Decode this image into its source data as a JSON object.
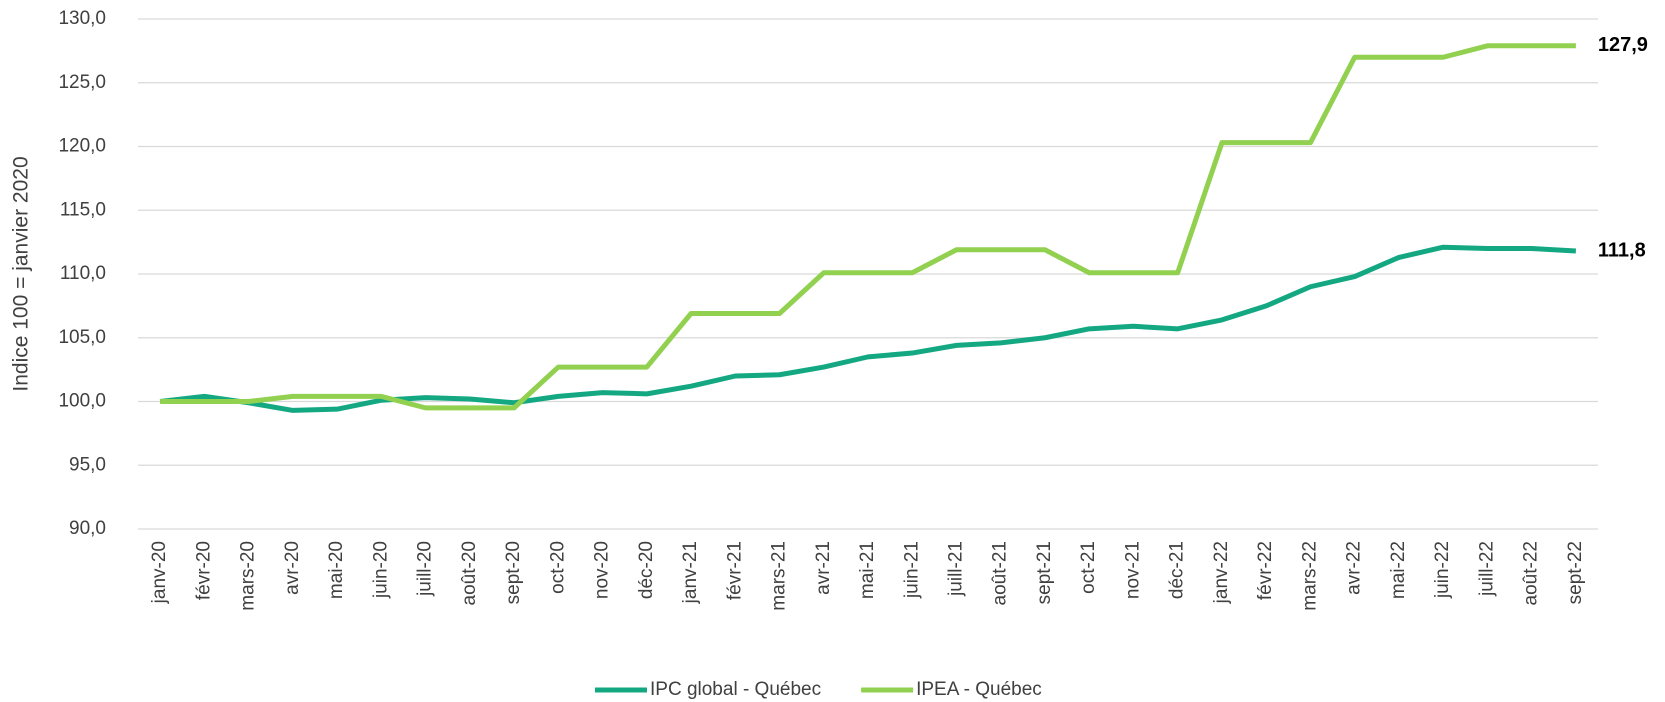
{
  "chart_data": {
    "type": "line",
    "y_label": "Indice 100 = janvier 2020",
    "categories": [
      "janv-20",
      "févr-20",
      "mars-20",
      "avr-20",
      "mai-20",
      "juin-20",
      "juill-20",
      "août-20",
      "sept-20",
      "oct-20",
      "nov-20",
      "déc-20",
      "janv-21",
      "févr-21",
      "mars-21",
      "avr-21",
      "mai-21",
      "juin-21",
      "juill-21",
      "août-21",
      "sept-21",
      "oct-21",
      "nov-21",
      "déc-21",
      "janv-22",
      "févr-22",
      "mars-22",
      "avr-22",
      "mai-22",
      "juin-22",
      "juill-22",
      "août-22",
      "sept-22"
    ],
    "series": [
      {
        "name": "IPC global - Québec",
        "color": "#14a882",
        "values": [
          100.0,
          100.4,
          99.9,
          99.3,
          99.4,
          100.1,
          100.3,
          100.2,
          99.9,
          100.4,
          100.7,
          100.6,
          101.2,
          102.0,
          102.1,
          102.7,
          103.5,
          103.8,
          104.4,
          104.6,
          105.0,
          105.7,
          105.9,
          105.7,
          106.4,
          107.5,
          109.0,
          109.8,
          111.3,
          112.1,
          112.0,
          112.0,
          111.8
        ],
        "value_labels": [
          null,
          null,
          null,
          null,
          null,
          null,
          null,
          null,
          null,
          null,
          null,
          null,
          null,
          null,
          null,
          null,
          null,
          null,
          null,
          null,
          null,
          null,
          null,
          null,
          null,
          null,
          null,
          null,
          null,
          null,
          null,
          null,
          "111,8"
        ]
      },
      {
        "name": "IPEA - Québec",
        "color": "#92d050",
        "values": [
          100.0,
          100.0,
          100.0,
          100.4,
          100.4,
          100.4,
          99.5,
          99.5,
          99.5,
          102.7,
          102.7,
          102.7,
          106.9,
          106.9,
          106.9,
          110.1,
          110.1,
          110.1,
          111.9,
          111.9,
          111.9,
          110.1,
          110.1,
          110.1,
          120.3,
          120.3,
          120.3,
          127.0,
          127.0,
          127.0,
          127.9,
          127.9,
          127.9
        ],
        "value_labels": [
          null,
          null,
          null,
          null,
          null,
          null,
          null,
          null,
          null,
          null,
          null,
          null,
          null,
          null,
          null,
          null,
          null,
          null,
          null,
          null,
          null,
          null,
          null,
          null,
          null,
          null,
          null,
          null,
          null,
          null,
          null,
          null,
          "127,9"
        ]
      }
    ],
    "ylim": [
      90,
      130
    ],
    "yticks": [
      {
        "value": 90,
        "label": "90,0"
      },
      {
        "value": 95,
        "label": "95,0"
      },
      {
        "value": 100,
        "label": "100,0"
      },
      {
        "value": 105,
        "label": "105,0"
      },
      {
        "value": 110,
        "label": "110,0"
      },
      {
        "value": 115,
        "label": "115,0"
      },
      {
        "value": 120,
        "label": "120,0"
      },
      {
        "value": 125,
        "label": "125,0"
      },
      {
        "value": 130,
        "label": "130,0"
      }
    ],
    "grid": true,
    "legend": "bottom"
  }
}
